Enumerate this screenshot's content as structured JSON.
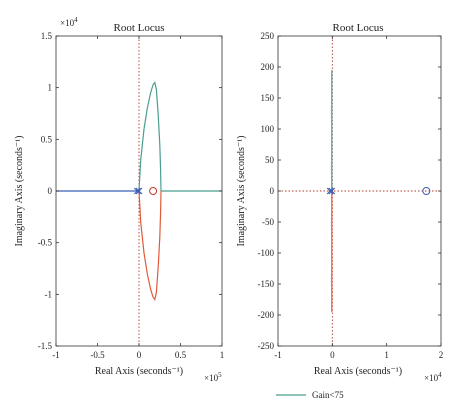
{
  "chart_data": [
    {
      "type": "line",
      "title": "Root Locus",
      "xlabel": "Real Axis (seconds⁻¹)",
      "ylabel": "Imaginary Axis (seconds⁻¹)",
      "xlim": [
        -1,
        1
      ],
      "ylim": [
        -1.5,
        1.5
      ],
      "x_ticks": [
        "-1",
        "-0.5",
        "0",
        "0.5",
        "1"
      ],
      "y_ticks": [
        "1.5",
        "1",
        "0.5",
        "0",
        "-0.5",
        "-1",
        "-1.5"
      ],
      "x_exponent": "×10",
      "x_exponent_power": "5",
      "y_exponent": "×10",
      "y_exponent_power": "4",
      "grid": false,
      "series": [
        {
          "color": "#4a9e8f",
          "x": [
            0,
            0.02,
            0.06,
            0.1,
            0.14,
            0.17,
            0.19,
            0.21,
            0.23,
            0.25,
            0.26,
            0.265
          ],
          "y": [
            0,
            0.3,
            0.6,
            0.8,
            0.95,
            1.03,
            1.05,
            0.98,
            0.75,
            0.45,
            0.2,
            0
          ]
        },
        {
          "color": "#e05a3a",
          "x": [
            0,
            0.02,
            0.06,
            0.1,
            0.14,
            0.17,
            0.19,
            0.21,
            0.23,
            0.25,
            0.26,
            0.265
          ],
          "y": [
            0,
            -0.3,
            -0.6,
            -0.8,
            -0.95,
            -1.03,
            -1.05,
            -0.98,
            -0.75,
            -0.45,
            -0.2,
            0
          ]
        },
        {
          "color": "#4a9e8f",
          "x": [
            0.265,
            1
          ],
          "y": [
            0,
            0
          ]
        },
        {
          "color": "#3b5fb5",
          "x": [
            -1,
            0
          ],
          "y": [
            0,
            0
          ]
        }
      ],
      "markers": [
        {
          "type": "pole",
          "x": -0.02,
          "y": 0,
          "color": "#3b5fb5"
        },
        {
          "type": "pole",
          "x": 0.0,
          "y": 0,
          "color": "#3b5fb5"
        },
        {
          "type": "zero",
          "x": 0.17,
          "y": 0,
          "color": "#c0392b"
        }
      ],
      "reference_lines": [
        {
          "axis": "x",
          "value": 0,
          "color": "#b0392b"
        }
      ]
    },
    {
      "type": "line",
      "title": "Root Locus",
      "xlabel": "Real Axis (seconds⁻¹)",
      "ylabel": "Imaginary Axis (seconds⁻¹)",
      "xlim": [
        -1,
        2
      ],
      "ylim": [
        -250,
        250
      ],
      "x_ticks": [
        "-1",
        "0",
        "1",
        "2"
      ],
      "y_ticks": [
        "250",
        "200",
        "150",
        "100",
        "50",
        "0",
        "-50",
        "-100",
        "-150",
        "-200",
        "-250"
      ],
      "x_exponent": "×10",
      "x_exponent_power": "4",
      "grid": false,
      "series": [
        {
          "color": "#4a9e8f",
          "x": [
            -0.01,
            -0.01
          ],
          "y": [
            0,
            195
          ]
        },
        {
          "color": "#e05a3a",
          "x": [
            -0.01,
            -0.01
          ],
          "y": [
            0,
            -195
          ]
        }
      ],
      "markers": [
        {
          "type": "pole",
          "x": -0.04,
          "y": 0,
          "color": "#3b5fb5"
        },
        {
          "type": "pole",
          "x": -0.01,
          "y": 0,
          "color": "#3b5fb5"
        },
        {
          "type": "zero",
          "x": 1.73,
          "y": 0,
          "color": "#3b5fb5"
        }
      ],
      "reference_lines": [
        {
          "axis": "x",
          "value": 0,
          "color": "#b0392b"
        },
        {
          "axis": "y",
          "value": 0,
          "color": "#b0392b"
        }
      ]
    }
  ],
  "legend": {
    "label": "Gain<75",
    "color": "#4a9e8f",
    "placement": "bottom-center"
  }
}
